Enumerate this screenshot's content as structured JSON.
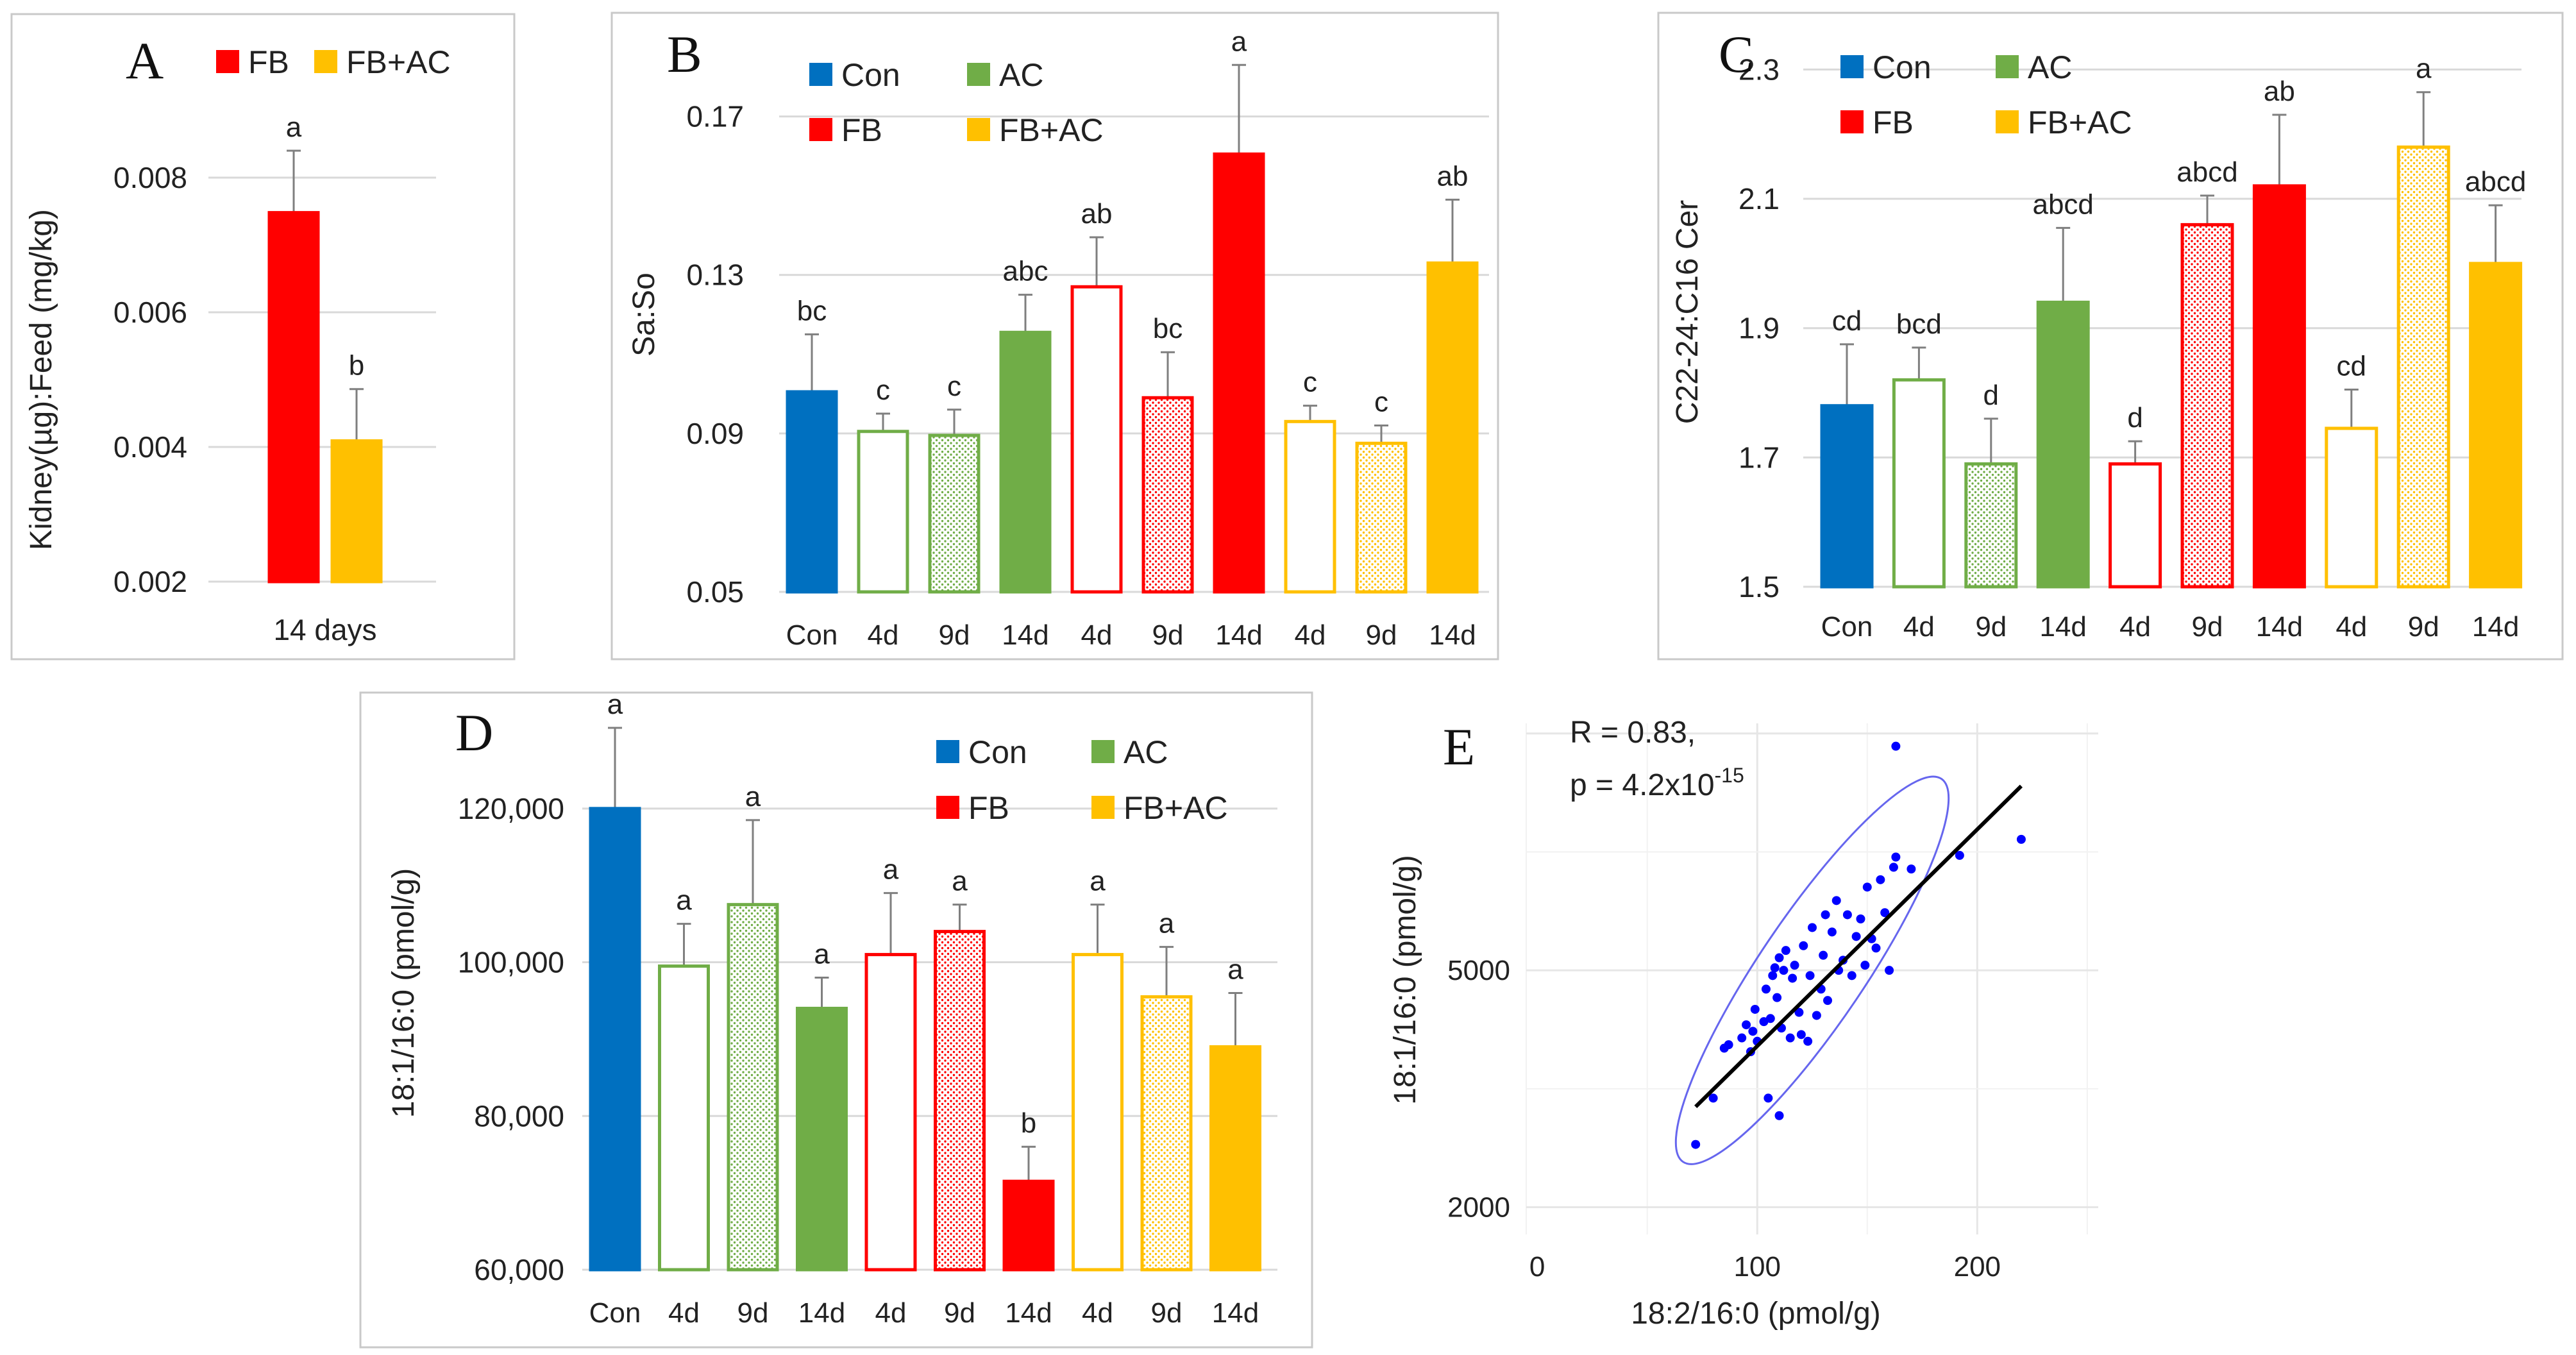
{
  "colors": {
    "con": "#0070C0",
    "ac": "#70AD47",
    "fb": "#FF0000",
    "fbac": "#FFC000",
    "grid": "#D9D9D9",
    "errorbar": "#7F7F7F",
    "scatter_point": "#0000FF",
    "ellipse": "#6666EE",
    "fit_line": "#000000"
  },
  "chart_data": [
    {
      "panel": "A",
      "type": "bar",
      "ylabel": "Kidney(µg):Feed (mg/kg)",
      "xlabel": "14 days",
      "ylim": [
        0.002,
        0.008
      ],
      "yticks": [
        "0.002",
        "0.004",
        "0.006",
        "0.008"
      ],
      "yticks_values": [
        0.002,
        0.004,
        0.006,
        0.008
      ],
      "legend": [
        {
          "label": "FB",
          "group": "fb"
        },
        {
          "label": "FB+AC",
          "group": "fbac"
        }
      ],
      "bars": [
        {
          "group": "fb",
          "fill": "solid",
          "value": 0.00748,
          "error": 0.00092,
          "sig": "a"
        },
        {
          "group": "fbac",
          "fill": "solid",
          "value": 0.00409,
          "error": 0.00077,
          "sig": "b"
        }
      ]
    },
    {
      "panel": "B",
      "type": "bar",
      "ylabel": "Sa:So",
      "ylim": [
        0.05,
        0.19
      ],
      "yticks": [
        "0.05",
        "0.09",
        "0.13",
        "0.17"
      ],
      "yticks_values": [
        0.05,
        0.09,
        0.13,
        0.17
      ],
      "legend": [
        {
          "label": "Con",
          "group": "con"
        },
        {
          "label": "AC",
          "group": "ac"
        },
        {
          "label": "FB",
          "group": "fb"
        },
        {
          "label": "FB+AC",
          "group": "fbac"
        }
      ],
      "bars": [
        {
          "category": "Con",
          "group": "con",
          "fill": "solid",
          "value": 0.1005,
          "error": 0.0145,
          "sig": "bc"
        },
        {
          "category": "4d",
          "group": "ac",
          "fill": "open",
          "value": 0.0905,
          "error": 0.0045,
          "sig": "c"
        },
        {
          "category": "9d",
          "group": "ac",
          "fill": "dotted",
          "value": 0.0895,
          "error": 0.0065,
          "sig": "c"
        },
        {
          "category": "14d",
          "group": "ac",
          "fill": "solid",
          "value": 0.1155,
          "error": 0.0095,
          "sig": "abc"
        },
        {
          "category": "4d",
          "group": "fb",
          "fill": "open",
          "value": 0.127,
          "error": 0.0125,
          "sig": "ab"
        },
        {
          "category": "9d",
          "group": "fb",
          "fill": "dotted",
          "value": 0.099,
          "error": 0.0115,
          "sig": "bc"
        },
        {
          "category": "14d",
          "group": "fb",
          "fill": "solid",
          "value": 0.1605,
          "error": 0.0225,
          "sig": "a"
        },
        {
          "category": "4d",
          "group": "fbac",
          "fill": "open",
          "value": 0.093,
          "error": 0.004,
          "sig": "c"
        },
        {
          "category": "9d",
          "group": "fbac",
          "fill": "dotted",
          "value": 0.0875,
          "error": 0.0045,
          "sig": "c"
        },
        {
          "category": "14d",
          "group": "fbac",
          "fill": "solid",
          "value": 0.133,
          "error": 0.016,
          "sig": "ab"
        }
      ]
    },
    {
      "panel": "C",
      "type": "bar",
      "ylabel": "C22-24:C16 Cer",
      "ylim": [
        1.5,
        2.35
      ],
      "yticks": [
        "1.5",
        "1.7",
        "1.9",
        "2.1",
        "2.3"
      ],
      "yticks_values": [
        1.5,
        1.7,
        1.9,
        2.1,
        2.3
      ],
      "legend": [
        {
          "label": "Con",
          "group": "con"
        },
        {
          "label": "AC",
          "group": "ac"
        },
        {
          "label": "FB",
          "group": "fb"
        },
        {
          "label": "FB+AC",
          "group": "fbac"
        }
      ],
      "bars": [
        {
          "category": "Con",
          "group": "con",
          "fill": "solid",
          "value": 1.78,
          "error": 0.095,
          "sig": "cd"
        },
        {
          "category": "4d",
          "group": "ac",
          "fill": "open",
          "value": 1.82,
          "error": 0.05,
          "sig": "bcd"
        },
        {
          "category": "9d",
          "group": "ac",
          "fill": "dotted",
          "value": 1.69,
          "error": 0.07,
          "sig": "d"
        },
        {
          "category": "14d",
          "group": "ac",
          "fill": "solid",
          "value": 1.94,
          "error": 0.115,
          "sig": "abcd"
        },
        {
          "category": "4d",
          "group": "fb",
          "fill": "open",
          "value": 1.69,
          "error": 0.035,
          "sig": "d"
        },
        {
          "category": "9d",
          "group": "fb",
          "fill": "dotted",
          "value": 2.06,
          "error": 0.045,
          "sig": "abcd"
        },
        {
          "category": "14d",
          "group": "fb",
          "fill": "solid",
          "value": 2.12,
          "error": 0.11,
          "sig": "ab"
        },
        {
          "category": "4d",
          "group": "fbac",
          "fill": "open",
          "value": 1.745,
          "error": 0.06,
          "sig": "cd"
        },
        {
          "category": "9d",
          "group": "fbac",
          "fill": "dotted",
          "value": 2.18,
          "error": 0.085,
          "sig": "a"
        },
        {
          "category": "14d",
          "group": "fbac",
          "fill": "solid",
          "value": 2.0,
          "error": 0.09,
          "sig": "abcd"
        }
      ]
    },
    {
      "panel": "D",
      "type": "bar",
      "ylabel": "18:1/16:0 (pmol/g)",
      "ylim": [
        60000,
        132000
      ],
      "yticks": [
        "60,000",
        "80,000",
        "100,000",
        "120,000"
      ],
      "yticks_values": [
        60000,
        80000,
        100000,
        120000
      ],
      "legend": [
        {
          "label": "Con",
          "group": "con"
        },
        {
          "label": "AC",
          "group": "ac"
        },
        {
          "label": "FB",
          "group": "fb"
        },
        {
          "label": "FB+AC",
          "group": "fbac"
        }
      ],
      "bars": [
        {
          "category": "Con",
          "group": "con",
          "fill": "solid",
          "value": 120000,
          "error": 10500,
          "sig": "a"
        },
        {
          "category": "4d",
          "group": "ac",
          "fill": "open",
          "value": 99500,
          "error": 5500,
          "sig": "a"
        },
        {
          "category": "9d",
          "group": "ac",
          "fill": "dotted",
          "value": 107500,
          "error": 11000,
          "sig": "a"
        },
        {
          "category": "14d",
          "group": "ac",
          "fill": "solid",
          "value": 94000,
          "error": 4000,
          "sig": "a"
        },
        {
          "category": "4d",
          "group": "fb",
          "fill": "open",
          "value": 101000,
          "error": 8000,
          "sig": "a"
        },
        {
          "category": "9d",
          "group": "fb",
          "fill": "dotted",
          "value": 104000,
          "error": 3500,
          "sig": "a"
        },
        {
          "category": "14d",
          "group": "fb",
          "fill": "solid",
          "value": 71500,
          "error": 4500,
          "sig": "b"
        },
        {
          "category": "4d",
          "group": "fbac",
          "fill": "open",
          "value": 101000,
          "error": 6500,
          "sig": "a"
        },
        {
          "category": "9d",
          "group": "fbac",
          "fill": "dotted",
          "value": 95500,
          "error": 6500,
          "sig": "a"
        },
        {
          "category": "14d",
          "group": "fbac",
          "fill": "solid",
          "value": 89000,
          "error": 7000,
          "sig": "a"
        }
      ]
    },
    {
      "panel": "E",
      "type": "scatter",
      "xlabel": "18:2/16:0 (pmol/g)",
      "ylabel": "18:1/16:0 (pmol/g)",
      "xlim": [
        -5,
        255
      ],
      "xticks": [
        "0",
        "100",
        "200"
      ],
      "xticks_values": [
        0,
        100,
        200
      ],
      "yscale": "log",
      "ylim": [
        1800,
        13000
      ],
      "yticks": [
        "2000",
        "5000"
      ],
      "yticks_values": [
        2000,
        5000
      ],
      "annotation": {
        "r_line": "R = 0.83,",
        "p_prefix": "p = 4.2x10",
        "p_exponent": "-15"
      },
      "fit_line": {
        "x": [
          72,
          220
        ],
        "y": [
          2950,
          10200
        ]
      },
      "ellipse": {
        "center": [
          125,
          5000
        ],
        "semi_axis_x_units": 105,
        "semi_axis_y_units": 24,
        "angle_deg": -56
      },
      "points": [
        {
          "x": 72,
          "y": 2550
        },
        {
          "x": 80,
          "y": 3050
        },
        {
          "x": 85,
          "y": 3700
        },
        {
          "x": 87,
          "y": 3750
        },
        {
          "x": 93,
          "y": 3850
        },
        {
          "x": 95,
          "y": 4050
        },
        {
          "x": 97,
          "y": 3650
        },
        {
          "x": 98,
          "y": 3950
        },
        {
          "x": 99,
          "y": 4300
        },
        {
          "x": 100,
          "y": 3800
        },
        {
          "x": 103,
          "y": 4100
        },
        {
          "x": 104,
          "y": 4650
        },
        {
          "x": 105,
          "y": 3050
        },
        {
          "x": 106,
          "y": 4150
        },
        {
          "x": 107,
          "y": 4900
        },
        {
          "x": 108,
          "y": 5050
        },
        {
          "x": 109,
          "y": 4500
        },
        {
          "x": 110,
          "y": 2850
        },
        {
          "x": 110,
          "y": 5250
        },
        {
          "x": 111,
          "y": 4000
        },
        {
          "x": 112,
          "y": 5000
        },
        {
          "x": 113,
          "y": 5400
        },
        {
          "x": 115,
          "y": 3850
        },
        {
          "x": 116,
          "y": 4850
        },
        {
          "x": 117,
          "y": 5100
        },
        {
          "x": 119,
          "y": 4250
        },
        {
          "x": 120,
          "y": 3900
        },
        {
          "x": 121,
          "y": 5500
        },
        {
          "x": 123,
          "y": 3800
        },
        {
          "x": 124,
          "y": 4900
        },
        {
          "x": 125,
          "y": 5900
        },
        {
          "x": 127,
          "y": 4200
        },
        {
          "x": 129,
          "y": 4650
        },
        {
          "x": 130,
          "y": 5300
        },
        {
          "x": 131,
          "y": 6200
        },
        {
          "x": 132,
          "y": 4450
        },
        {
          "x": 134,
          "y": 5800
        },
        {
          "x": 136,
          "y": 6550
        },
        {
          "x": 137,
          "y": 5000
        },
        {
          "x": 139,
          "y": 5200
        },
        {
          "x": 141,
          "y": 6200
        },
        {
          "x": 143,
          "y": 4900
        },
        {
          "x": 145,
          "y": 5700
        },
        {
          "x": 147,
          "y": 6100
        },
        {
          "x": 149,
          "y": 5100
        },
        {
          "x": 150,
          "y": 6900
        },
        {
          "x": 152,
          "y": 5650
        },
        {
          "x": 154,
          "y": 5450
        },
        {
          "x": 156,
          "y": 7100
        },
        {
          "x": 158,
          "y": 6250
        },
        {
          "x": 160,
          "y": 5000
        },
        {
          "x": 162,
          "y": 7450
        },
        {
          "x": 163,
          "y": 7750
        },
        {
          "x": 163,
          "y": 11900
        },
        {
          "x": 170,
          "y": 7400
        },
        {
          "x": 192,
          "y": 7800
        },
        {
          "x": 220,
          "y": 8300
        }
      ]
    }
  ]
}
